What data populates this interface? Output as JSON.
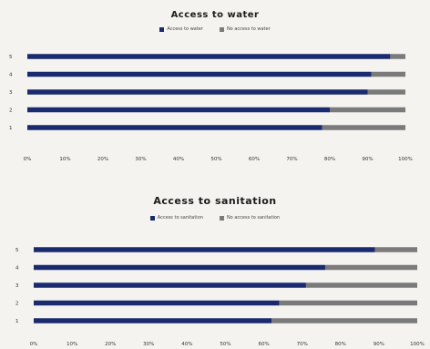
{
  "chart_data": [
    {
      "type": "bar",
      "orientation": "horizontal",
      "stacked": true,
      "title": "Access to water",
      "categories": [
        "1",
        "2",
        "3",
        "4",
        "5"
      ],
      "series": [
        {
          "name": "Access to water",
          "color": "#1a2a6e",
          "values": [
            78,
            80,
            90,
            91,
            96
          ]
        },
        {
          "name": "No access to water",
          "color": "#7a7a7a",
          "values": [
            22,
            20,
            10,
            9,
            4
          ]
        }
      ],
      "xlim": [
        0,
        100
      ],
      "xticks": [
        "0%",
        "10%",
        "20%",
        "30%",
        "40%",
        "50%",
        "60%",
        "70%",
        "80%",
        "90%",
        "100%"
      ],
      "legend": "top"
    },
    {
      "type": "bar",
      "orientation": "horizontal",
      "stacked": true,
      "title": "Access to sanitation",
      "categories": [
        "1",
        "2",
        "3",
        "4",
        "5"
      ],
      "series": [
        {
          "name": "Access to sanitation",
          "color": "#1a2a6e",
          "values": [
            62,
            64,
            71,
            76,
            89
          ]
        },
        {
          "name": "No access to sanitation",
          "color": "#7a7a7a",
          "values": [
            38,
            36,
            29,
            24,
            11
          ]
        }
      ],
      "xlim": [
        0,
        100
      ],
      "xticks": [
        "0%",
        "10%",
        "20%",
        "30%",
        "40%",
        "50%",
        "60%",
        "70%",
        "80%",
        "90%",
        "100%"
      ],
      "legend": "top"
    }
  ]
}
